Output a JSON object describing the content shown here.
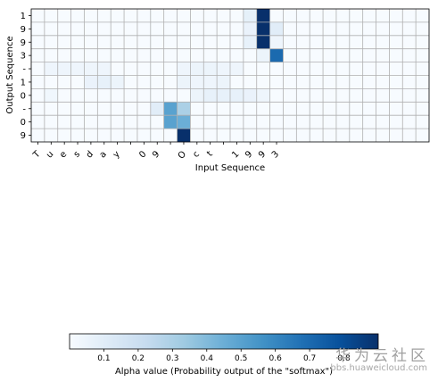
{
  "chart_data": {
    "type": "heatmap",
    "xlabel": "Input Sequence",
    "ylabel": "Output Sequence",
    "x_tick_labels": [
      "T",
      "u",
      "e",
      "s",
      "d",
      "a",
      "y",
      "",
      "0",
      "9",
      "",
      "O",
      "c",
      "t",
      "",
      "1",
      "9",
      "9",
      "3"
    ],
    "x_columns_total": 30,
    "y_tick_labels": [
      "1",
      "9",
      "9",
      "3",
      "-",
      "1",
      "0",
      "-",
      "0",
      "9"
    ],
    "grid": true,
    "cmap": "Blues",
    "colorbar": {
      "label": "Alpha value (Probability output of the \"softmax\")",
      "ticks": [
        0.1,
        0.2,
        0.3,
        0.4,
        0.5,
        0.6,
        0.7,
        0.8
      ],
      "range": [
        0.0,
        0.9
      ],
      "placement": "bottom"
    },
    "values": [
      [
        0,
        0,
        0,
        0,
        0,
        0,
        0,
        0,
        0,
        0,
        0,
        0,
        0,
        0,
        0,
        0,
        0.08,
        0.95,
        0,
        0,
        0,
        0,
        0,
        0,
        0,
        0,
        0,
        0,
        0,
        0
      ],
      [
        0,
        0,
        0,
        0,
        0,
        0,
        0,
        0,
        0,
        0,
        0,
        0,
        0,
        0,
        0,
        0,
        0.06,
        0.95,
        0.1,
        0,
        0,
        0,
        0,
        0,
        0,
        0,
        0,
        0,
        0,
        0
      ],
      [
        0,
        0,
        0,
        0,
        0,
        0,
        0,
        0,
        0,
        0,
        0,
        0,
        0,
        0,
        0,
        0,
        0.07,
        0.95,
        0.04,
        0,
        0,
        0,
        0,
        0,
        0,
        0,
        0,
        0,
        0,
        0
      ],
      [
        0,
        0,
        0,
        0,
        0,
        0,
        0,
        0,
        0,
        0,
        0,
        0,
        0,
        0,
        0,
        0,
        0,
        0.05,
        0.7,
        0,
        0,
        0,
        0,
        0,
        0,
        0,
        0,
        0,
        0,
        0
      ],
      [
        0,
        0.04,
        0.04,
        0.04,
        0.04,
        0.04,
        0,
        0,
        0,
        0,
        0,
        0.04,
        0.05,
        0.05,
        0.04,
        0.04,
        0,
        0,
        0,
        0,
        0,
        0,
        0,
        0,
        0,
        0,
        0,
        0,
        0,
        0
      ],
      [
        0,
        0,
        0,
        0,
        0.06,
        0.07,
        0.05,
        0,
        0,
        0,
        0,
        0.05,
        0.04,
        0.04,
        0.05,
        0,
        0,
        0,
        0,
        0,
        0,
        0,
        0,
        0,
        0,
        0,
        0,
        0,
        0,
        0
      ],
      [
        0,
        0.03,
        0,
        0,
        0,
        0,
        0,
        0,
        0,
        0,
        0,
        0,
        0.05,
        0.07,
        0.07,
        0.07,
        0.06,
        0.04,
        0,
        0,
        0,
        0,
        0,
        0,
        0,
        0,
        0,
        0,
        0,
        0
      ],
      [
        0,
        0,
        0,
        0,
        0,
        0,
        0,
        0,
        0,
        0.1,
        0.5,
        0.3,
        0,
        0,
        0,
        0,
        0,
        0,
        0,
        0,
        0,
        0,
        0,
        0,
        0,
        0,
        0,
        0,
        0,
        0
      ],
      [
        0,
        0,
        0,
        0,
        0,
        0,
        0,
        0,
        0,
        0,
        0.5,
        0.45,
        0,
        0,
        0,
        0,
        0,
        0,
        0,
        0,
        0,
        0,
        0,
        0,
        0,
        0,
        0,
        0,
        0,
        0
      ],
      [
        0,
        0,
        0,
        0,
        0,
        0,
        0,
        0,
        0,
        0,
        0,
        0.97,
        0,
        0,
        0,
        0,
        0,
        0,
        0,
        0,
        0,
        0,
        0,
        0,
        0,
        0,
        0,
        0,
        0,
        0
      ]
    ]
  },
  "watermark": {
    "brand": "华为云社区",
    "url": "bbs.huaweicloud.com"
  }
}
